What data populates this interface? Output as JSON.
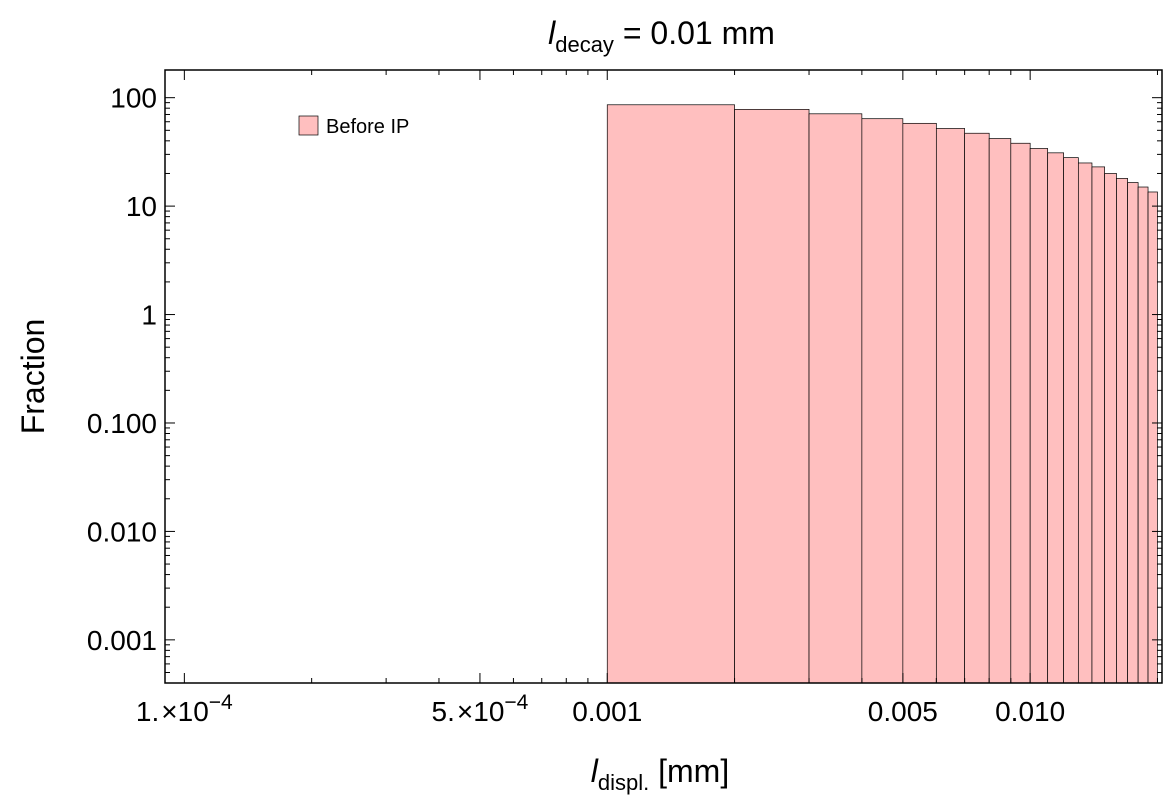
{
  "chart_data": {
    "type": "bar",
    "title": {
      "italic": "l",
      "sub": "decay",
      "rest": " = 0.01 mm"
    },
    "xlabel": {
      "italic": "l",
      "sub": "displ.",
      "rest": " [mm]"
    },
    "ylabel": "Fraction",
    "xscale": "log",
    "yscale": "log",
    "xlim": [
      9e-05,
      0.0205
    ],
    "ylim": [
      0.0004,
      180
    ],
    "grid": false,
    "legend_position": "top-left",
    "series": [
      {
        "name": "Before IP",
        "color": "#ffbfbf",
        "edges": [
          0.001,
          0.002,
          0.003,
          0.004,
          0.005,
          0.006,
          0.007,
          0.008,
          0.009,
          0.01,
          0.011,
          0.012,
          0.013,
          0.014,
          0.015,
          0.016,
          0.017,
          0.018,
          0.019,
          0.02
        ],
        "values": [
          86,
          78,
          71,
          64,
          58,
          52,
          47,
          42,
          38,
          34,
          31,
          28,
          25,
          23,
          20,
          18,
          16.5,
          15,
          13.5
        ]
      }
    ],
    "x_ticks": [
      {
        "value": 0.0001,
        "mant": "1.",
        "exp": "−4"
      },
      {
        "value": 0.0005,
        "mant": "5.",
        "exp": "−4"
      },
      {
        "value": 0.001,
        "text": "0.001"
      },
      {
        "value": 0.005,
        "text": "0.005"
      },
      {
        "value": 0.01,
        "text": "0.010"
      }
    ],
    "y_ticks": [
      {
        "value": 100,
        "text": "100"
      },
      {
        "value": 10,
        "text": "10"
      },
      {
        "value": 1,
        "text": "1"
      },
      {
        "value": 0.1,
        "text": "0.100"
      },
      {
        "value": 0.01,
        "text": "0.010"
      },
      {
        "value": 0.001,
        "text": "0.001"
      }
    ]
  }
}
